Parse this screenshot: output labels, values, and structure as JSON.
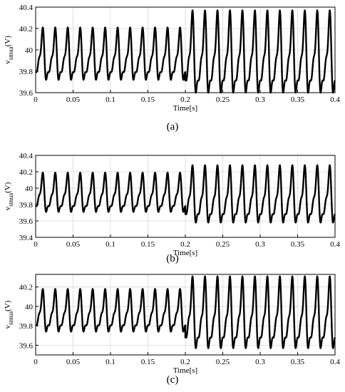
{
  "chart_data": [
    {
      "type": "line",
      "panel_label": "a",
      "caption": "(a)",
      "xlabel": "Time[s]",
      "ylabel_main": "v",
      "ylabel_sub": "smua",
      "ylabel_unit": "(V)",
      "xlim": [
        0,
        0.4
      ],
      "ylim": [
        39.6,
        40.4
      ],
      "xticks": [
        0,
        0.05,
        0.1,
        0.15,
        0.2,
        0.25,
        0.3,
        0.35,
        0.4
      ],
      "xtick_labels": [
        "0",
        "0.05",
        "0.1",
        "0.15",
        "0.2",
        "0.25",
        "0.3",
        "0.35",
        "0.4"
      ],
      "yticks": [
        39.6,
        39.8,
        40,
        40.2,
        40.4
      ],
      "ytick_labels": [
        "39.6",
        "39.8",
        "40",
        "40.2",
        "40.4"
      ],
      "grid": true,
      "line_color": "#000000",
      "series": [
        {
          "segments": [
            {
              "t_start": 0,
              "t_end": 0.2,
              "period": 0.01667,
              "max": 40.21,
              "min": 39.72
            },
            {
              "t_start": 0.2,
              "t_end": 0.4,
              "period": 0.01667,
              "max": 40.37,
              "min": 39.6
            }
          ]
        }
      ]
    },
    {
      "type": "line",
      "panel_label": "b",
      "caption": "(b)",
      "xlabel": "Time[s]",
      "ylabel_main": "v",
      "ylabel_sub": "smua",
      "ylabel_unit": "(V)",
      "xlim": [
        0,
        0.4
      ],
      "ylim": [
        39.4,
        40.4
      ],
      "xticks": [
        0,
        0.05,
        0.1,
        0.15,
        0.2,
        0.25,
        0.3,
        0.35,
        0.4
      ],
      "xtick_labels": [
        "0",
        "0.05",
        "0.1",
        "0.15",
        "0.2",
        "0.25",
        "0.3",
        "0.35",
        "0.4"
      ],
      "yticks": [
        39.4,
        39.6,
        39.8,
        40,
        40.2,
        40.4
      ],
      "ytick_labels": [
        "39.4",
        "39.6",
        "39.8",
        "40",
        "40.2",
        "40.4"
      ],
      "grid": true,
      "line_color": "#000000",
      "series": [
        {
          "segments": [
            {
              "t_start": 0,
              "t_end": 0.2,
              "period": 0.01667,
              "max": 40.19,
              "min": 39.71
            },
            {
              "t_start": 0.2,
              "t_end": 0.4,
              "period": 0.01667,
              "max": 40.28,
              "min": 39.58
            }
          ]
        }
      ]
    },
    {
      "type": "line",
      "panel_label": "c",
      "caption": "(c)",
      "xlabel": "Time[s]",
      "ylabel_main": "v",
      "ylabel_sub": "smua",
      "ylabel_unit": "(V)",
      "xlim": [
        0,
        0.4
      ],
      "ylim": [
        39.5,
        40.33
      ],
      "xticks": [
        0,
        0.05,
        0.1,
        0.15,
        0.2,
        0.25,
        0.3,
        0.35,
        0.4
      ],
      "xtick_labels": [
        "0",
        "0.05",
        "0.1",
        "0.15",
        "0.2",
        "0.25",
        "0.3",
        "0.35",
        "0.4"
      ],
      "yticks": [
        39.6,
        39.8,
        40,
        40.2
      ],
      "ytick_labels": [
        "39.6",
        "39.8",
        "40",
        "40.2"
      ],
      "grid": true,
      "line_color": "#000000",
      "series": [
        {
          "segments": [
            {
              "t_start": 0,
              "t_end": 0.2,
              "period": 0.01667,
              "max": 40.18,
              "min": 39.74
            },
            {
              "t_start": 0.2,
              "t_end": 0.4,
              "period": 0.01667,
              "max": 40.31,
              "min": 39.57
            }
          ]
        }
      ]
    }
  ]
}
